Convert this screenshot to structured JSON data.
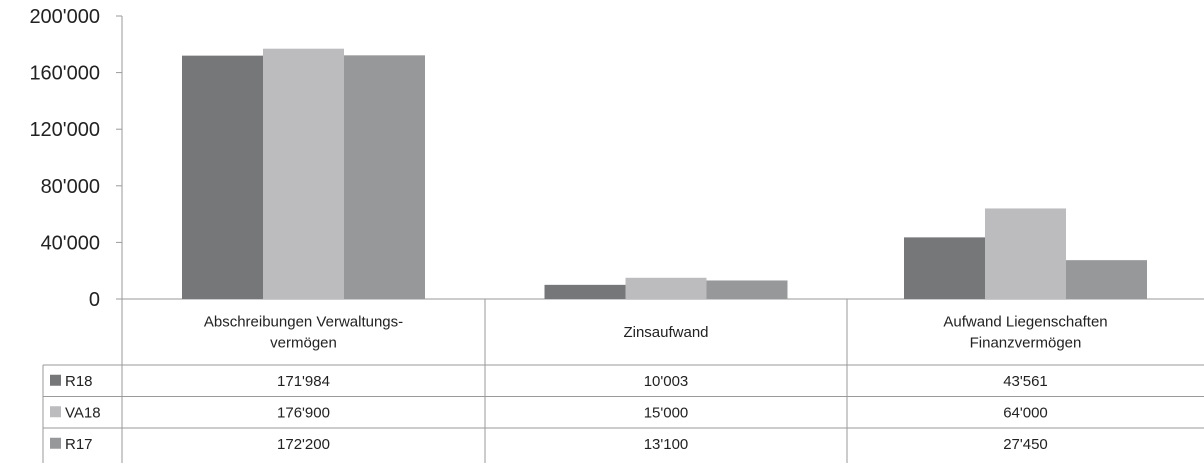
{
  "chart_data": {
    "type": "bar",
    "title": "",
    "xlabel": "",
    "ylabel": "",
    "ylim": [
      0,
      200000
    ],
    "yticks": [
      0,
      40000,
      80000,
      120000,
      160000,
      200000
    ],
    "ytick_labels": [
      "0",
      "40'000",
      "80'000",
      "120'000",
      "160'000",
      "200'000"
    ],
    "categories": [
      [
        "Abschreibungen Verwaltungs-",
        "vermögen"
      ],
      [
        "Zinsaufwand"
      ],
      [
        "Aufwand Liegenschaften",
        "Finanzvermögen"
      ]
    ],
    "series": [
      {
        "name": "R18",
        "color": "#767779",
        "values": [
          171984,
          10003,
          43561
        ],
        "value_labels": [
          "171'984",
          "10'003",
          "43'561"
        ]
      },
      {
        "name": "VA18",
        "color": "#bcbcbe",
        "values": [
          176900,
          15000,
          64000
        ],
        "value_labels": [
          "176'900",
          "15'000",
          "64'000"
        ]
      },
      {
        "name": "R17",
        "color": "#97989a",
        "values": [
          172200,
          13100,
          27450
        ],
        "value_labels": [
          "172'200",
          "13'100",
          "27'450"
        ]
      }
    ],
    "grid": false,
    "legend": "data-table",
    "data_table": true
  }
}
